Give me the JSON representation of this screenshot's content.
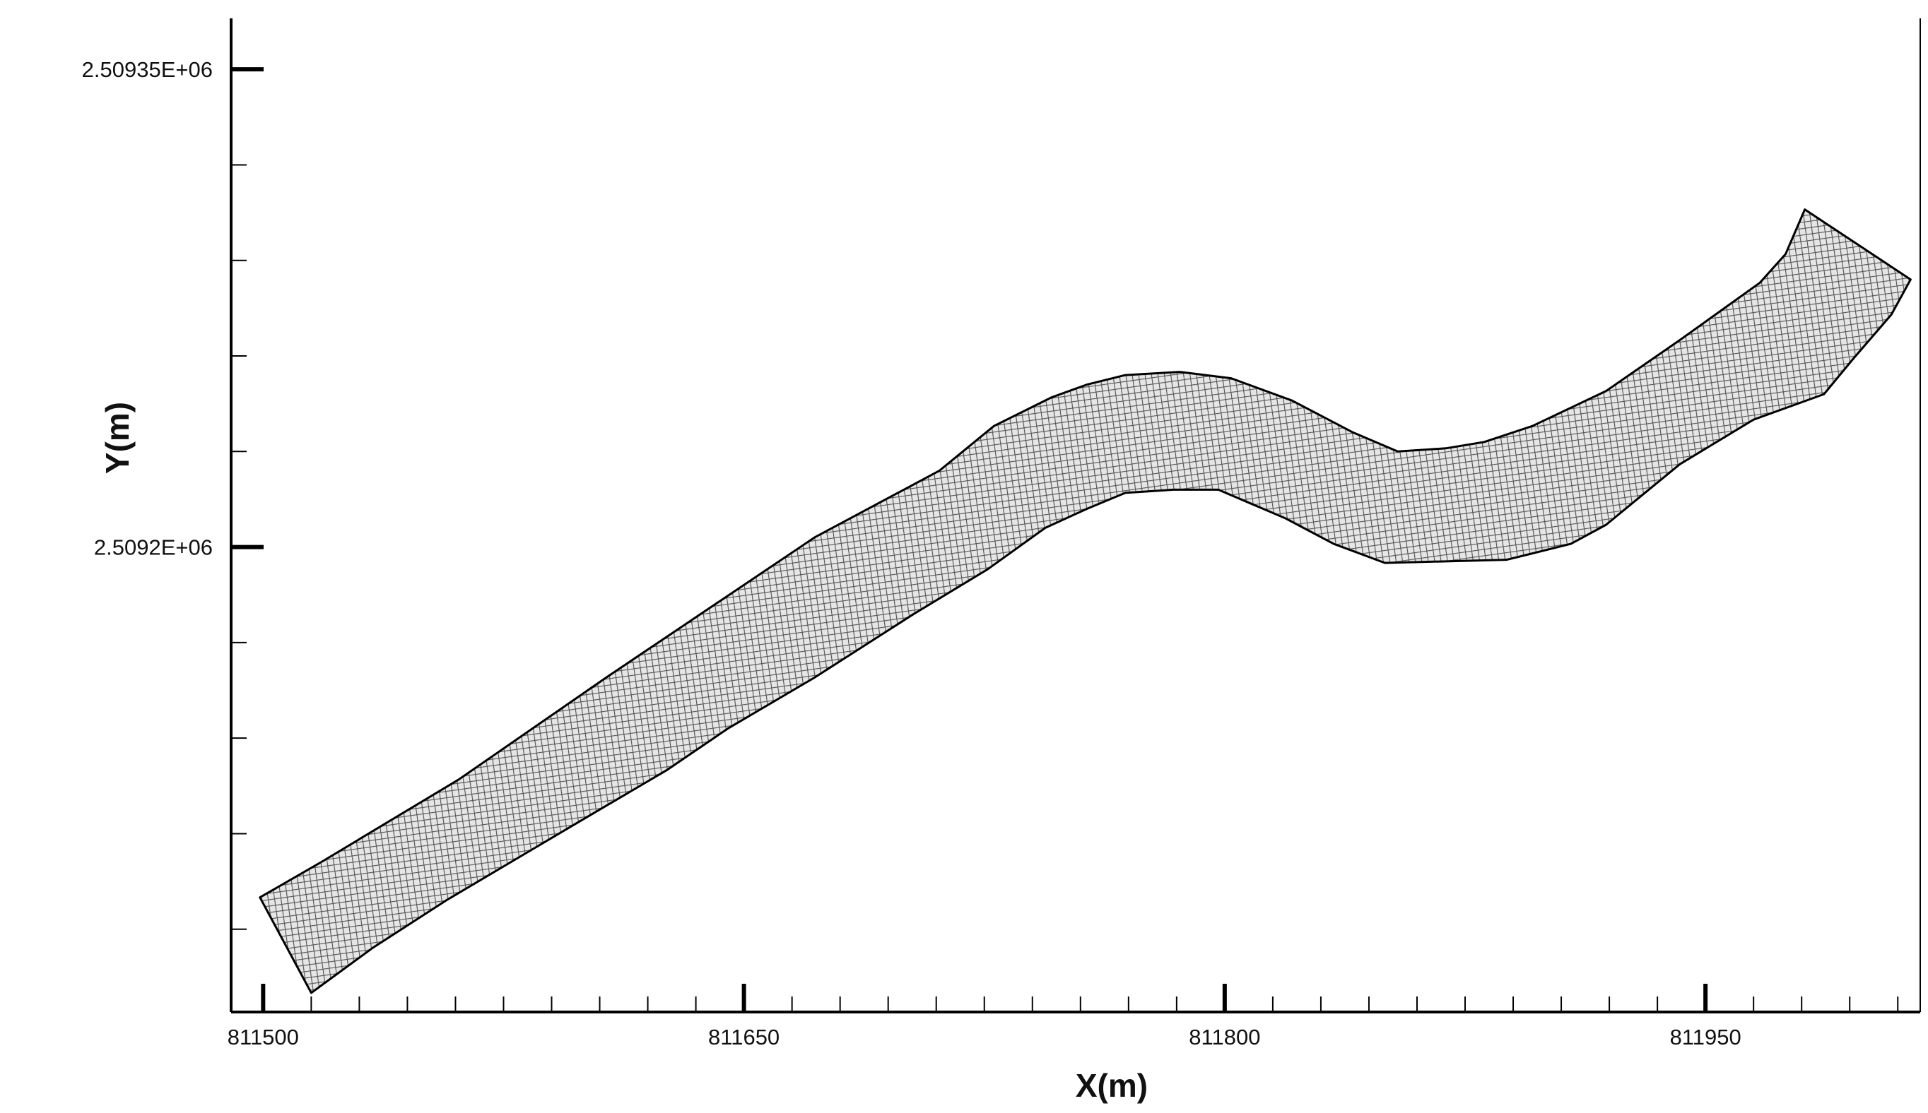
{
  "chart_data": {
    "type": "mesh",
    "xlabel": "X(m)",
    "ylabel": "Y(m)",
    "x": [
      811499,
      811518,
      811561,
      811607,
      811672,
      811711,
      811728,
      811746,
      811757,
      811769,
      811786,
      811802,
      811821,
      811840,
      811854,
      811869,
      811881,
      811896,
      811919,
      811942,
      811967,
      811975,
      811981,
      812014,
      812008,
      811996,
      811987,
      811965,
      811942,
      811919,
      811908,
      811888,
      811850,
      811834,
      811819,
      811798,
      811784,
      811769,
      811757,
      811744,
      811726,
      811703,
      811672,
      811645,
      811626,
      811599,
      811557,
      811534,
      811515
    ],
    "y": [
      2509090,
      2509101,
      2509127,
      2509159,
      2509203,
      2509224,
      2509238,
      2509247,
      2509251,
      2509254,
      2509255,
      2509253,
      2509246,
      2509236,
      2509230,
      2509231,
      2509233,
      2509238,
      2509249,
      2509265,
      2509283,
      2509292,
      2509306,
      2509284,
      2509273,
      2509259,
      2509248,
      2509240,
      2509226,
      2509207,
      2509201,
      2509196,
      2509195,
      2509201,
      2509209,
      2509218,
      2509218,
      2509217,
      2509212,
      2509206,
      2509193,
      2509179,
      2509159,
      2509143,
      2509130,
      2509114,
      2509089,
      2509074,
      2509060
    ],
    "color": "#000000",
    "xlim": [
      811490,
      812017
    ],
    "ylim": [
      2509054,
      2509366
    ],
    "xticks": [
      811500,
      811650,
      811800,
      811950
    ],
    "yticks": [
      {
        "value": 2509350,
        "label": "2.50935E+06"
      },
      {
        "value": 2509200,
        "label": "2.5092E+06"
      }
    ],
    "xminorticks": [
      811515,
      811530,
      811545,
      811560,
      811575,
      811590,
      811605,
      811620,
      811635,
      811665,
      811680,
      811695,
      811710,
      811725,
      811740,
      811755,
      811770,
      811785,
      811815,
      811830,
      811845,
      811860,
      811875,
      811890,
      811905,
      811920,
      811935,
      811965,
      811980,
      811995,
      812010
    ],
    "yminorticks": [
      2509320,
      2509290,
      2509260,
      2509230,
      2509170,
      2509140,
      2509110,
      2509080
    ]
  }
}
